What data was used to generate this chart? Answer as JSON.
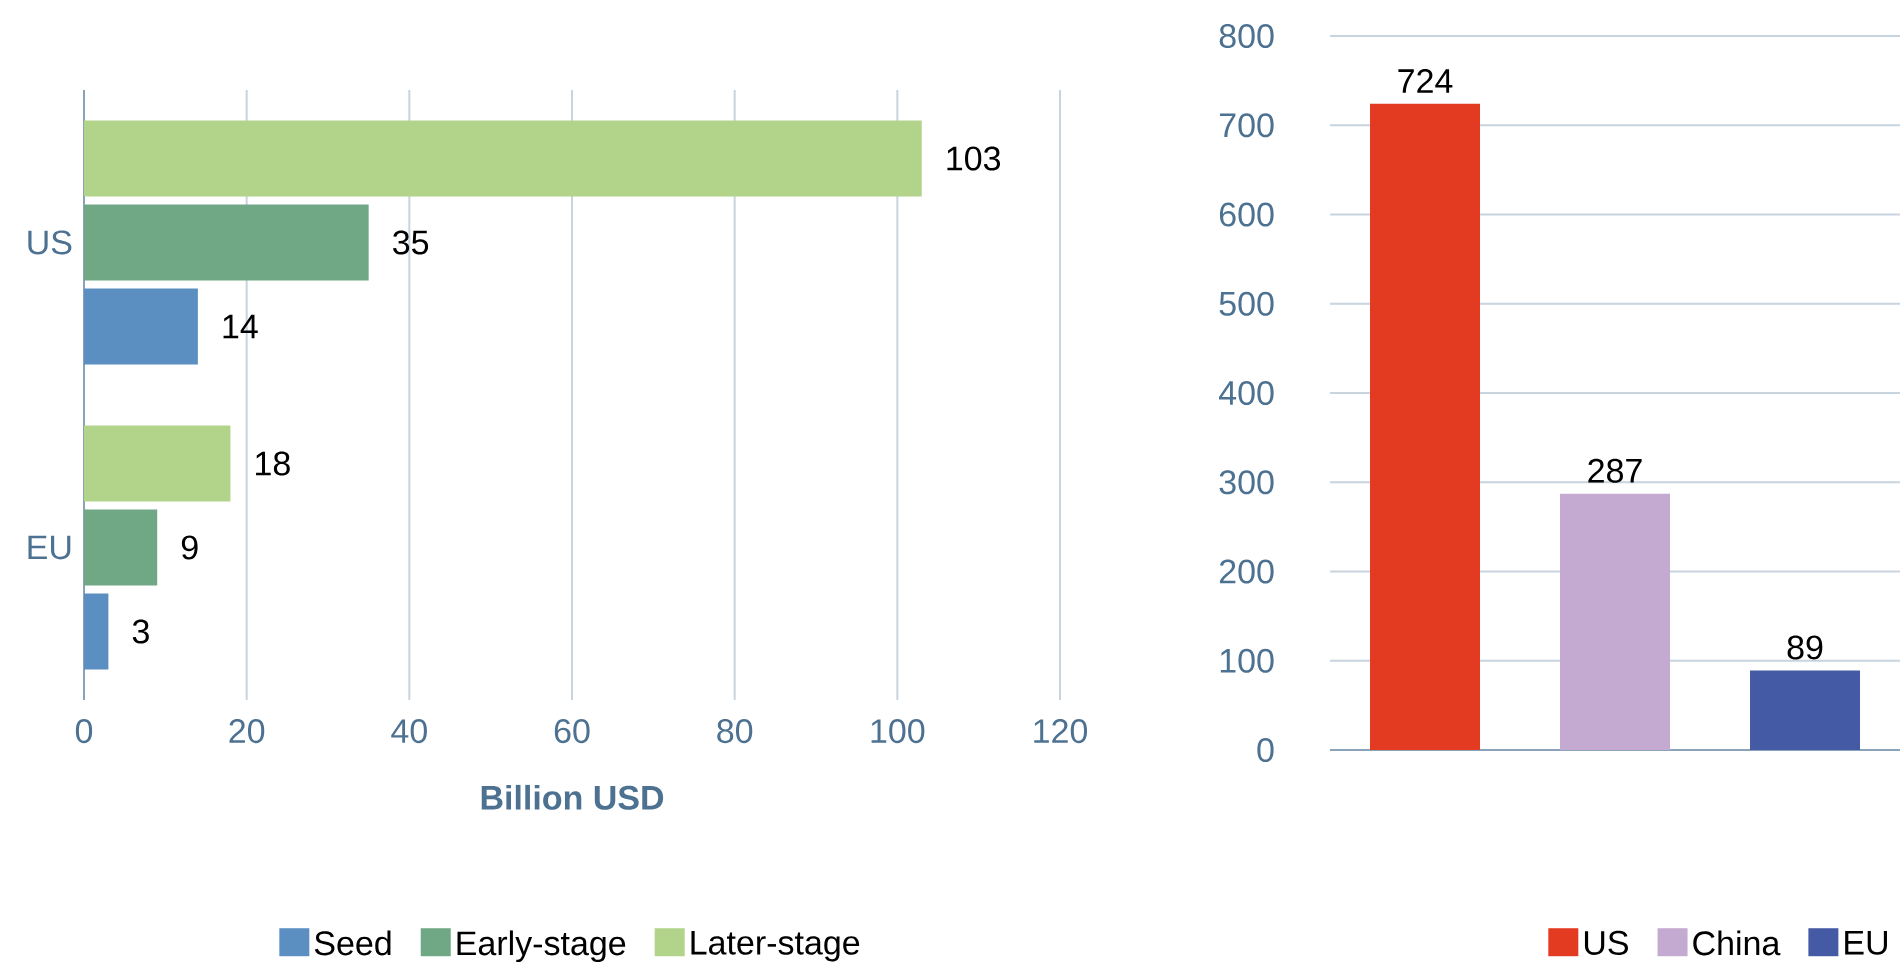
{
  "chart_data": [
    {
      "type": "bar",
      "orientation": "horizontal",
      "categories": [
        "US",
        "EU"
      ],
      "series": [
        {
          "name": "Seed",
          "color": "#5b8fc2",
          "values": [
            14,
            3
          ]
        },
        {
          "name": "Early-stage",
          "color": "#70a886",
          "values": [
            35,
            9
          ]
        },
        {
          "name": "Later-stage",
          "color": "#b1d38a",
          "values": [
            103,
            18
          ]
        }
      ],
      "xlim": [
        0,
        120
      ],
      "xticks": [
        0,
        20,
        40,
        60,
        80,
        100,
        120
      ],
      "xlabel": "Billion USD",
      "grid": "x",
      "legend": "bottom",
      "data_labels": true
    },
    {
      "type": "bar",
      "categories": [
        null,
        null,
        null
      ],
      "series": [
        {
          "name": "US",
          "color": "#e33a22",
          "values": [
            724,
            null,
            null
          ]
        },
        {
          "name": "China",
          "color": "#c4a9d0",
          "values": [
            null,
            287,
            null
          ]
        },
        {
          "name": "EU",
          "color": "#445aa5",
          "values": [
            null,
            null,
            89
          ]
        }
      ],
      "ylim": [
        0,
        800
      ],
      "yticks": [
        0,
        100,
        200,
        300,
        400,
        500,
        600,
        700,
        800
      ],
      "grid": "y",
      "legend": "bottom right",
      "data_labels": true,
      "tick_labels": "y"
    }
  ]
}
